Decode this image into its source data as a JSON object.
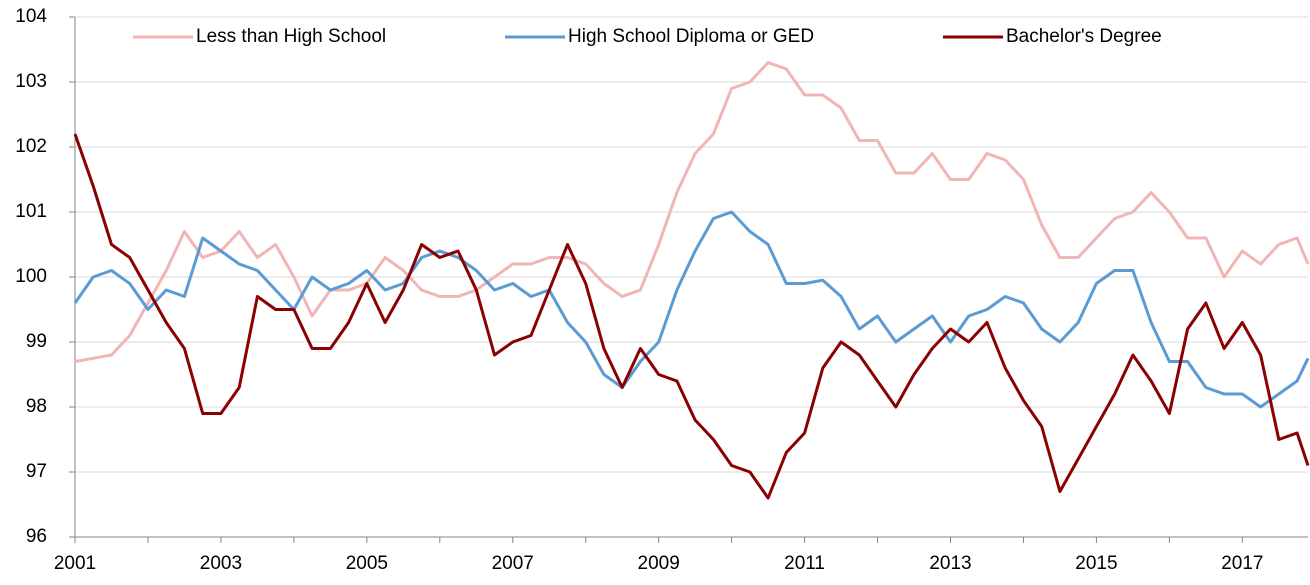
{
  "chart_data": {
    "type": "line",
    "x": [
      2001,
      2001.25,
      2001.5,
      2001.75,
      2002,
      2002.25,
      2002.5,
      2002.75,
      2003,
      2003.25,
      2003.5,
      2003.75,
      2004,
      2004.25,
      2004.5,
      2004.75,
      2005,
      2005.25,
      2005.5,
      2005.75,
      2006,
      2006.25,
      2006.5,
      2006.75,
      2007,
      2007.25,
      2007.5,
      2007.75,
      2008,
      2008.25,
      2008.5,
      2008.75,
      2009,
      2009.25,
      2009.5,
      2009.75,
      2010,
      2010.25,
      2010.5,
      2010.75,
      2011,
      2011.25,
      2011.5,
      2011.75,
      2012,
      2012.25,
      2012.5,
      2012.75,
      2013,
      2013.25,
      2013.5,
      2013.75,
      2014,
      2014.25,
      2014.5,
      2014.75,
      2015,
      2015.25,
      2015.5,
      2015.75,
      2016,
      2016.25,
      2016.5,
      2016.75,
      2017,
      2017.25,
      2017.5,
      2017.75,
      2017.9
    ],
    "series": [
      {
        "name": "Less than High School",
        "color": "#f2b5b5",
        "values": [
          98.7,
          98.75,
          98.8,
          99.1,
          99.6,
          100.1,
          100.7,
          100.3,
          100.4,
          100.7,
          100.3,
          100.5,
          100.0,
          99.4,
          99.8,
          99.8,
          99.9,
          100.3,
          100.1,
          99.8,
          99.7,
          99.7,
          99.8,
          100.0,
          100.2,
          100.2,
          100.3,
          100.3,
          100.2,
          99.9,
          99.7,
          99.8,
          100.5,
          101.3,
          101.9,
          102.2,
          102.9,
          103.0,
          103.3,
          103.2,
          102.8,
          102.8,
          102.6,
          102.1,
          102.1,
          101.6,
          101.6,
          101.9,
          101.5,
          101.5,
          101.9,
          101.8,
          101.5,
          100.8,
          100.3,
          100.3,
          100.6,
          100.9,
          101.0,
          101.3,
          101.0,
          100.6,
          100.6,
          100.0,
          100.4,
          100.2,
          100.5,
          100.6,
          100.2
        ]
      },
      {
        "name": "High School Diploma or GED",
        "color": "#5b9bd5",
        "values": [
          99.6,
          100.0,
          100.1,
          99.9,
          99.5,
          99.8,
          99.7,
          100.6,
          100.4,
          100.2,
          100.1,
          99.8,
          99.5,
          100.0,
          99.8,
          99.9,
          100.1,
          99.8,
          99.9,
          100.3,
          100.4,
          100.3,
          100.1,
          99.8,
          99.9,
          99.7,
          99.8,
          99.3,
          99.0,
          98.5,
          98.3,
          98.7,
          99.0,
          99.8,
          100.4,
          100.9,
          101.0,
          100.7,
          100.5,
          99.9,
          99.9,
          99.95,
          99.7,
          99.2,
          99.4,
          99.0,
          99.2,
          99.4,
          99.0,
          99.4,
          99.5,
          99.7,
          99.6,
          99.2,
          99.0,
          99.3,
          99.9,
          100.1,
          100.1,
          99.3,
          98.7,
          98.7,
          98.3,
          98.2,
          98.2,
          98.0,
          98.2,
          98.4,
          98.75
        ]
      },
      {
        "name": "Bachelor's Degree",
        "color": "#8b0000",
        "values": [
          102.2,
          101.4,
          100.5,
          100.3,
          99.8,
          99.3,
          98.9,
          97.9,
          97.9,
          98.3,
          99.7,
          99.5,
          99.5,
          98.9,
          98.9,
          99.3,
          99.9,
          99.3,
          99.8,
          100.5,
          100.3,
          100.4,
          99.8,
          98.8,
          99.0,
          99.1,
          99.8,
          100.5,
          99.9,
          98.9,
          98.3,
          98.9,
          98.5,
          98.4,
          97.8,
          97.5,
          97.1,
          97.0,
          96.6,
          97.3,
          97.6,
          98.6,
          99.0,
          98.8,
          98.4,
          98.0,
          98.5,
          98.9,
          99.2,
          99.0,
          99.3,
          98.6,
          98.1,
          97.7,
          96.7,
          97.2,
          97.7,
          98.2,
          98.8,
          98.4,
          97.9,
          99.2,
          99.6,
          98.9,
          99.3,
          98.8,
          97.5,
          97.6,
          97.1
        ]
      }
    ],
    "xlim": [
      2001,
      2017.9
    ],
    "xticks": [
      2001,
      2003,
      2005,
      2007,
      2009,
      2011,
      2013,
      2015,
      2017
    ],
    "x_minor_ticks": [
      2002,
      2004,
      2006,
      2008,
      2010,
      2012,
      2014,
      2016
    ],
    "ylim": [
      96,
      104
    ],
    "yticks": [
      96,
      97,
      98,
      99,
      100,
      101,
      102,
      103,
      104
    ],
    "grid": true,
    "legend": "top"
  }
}
